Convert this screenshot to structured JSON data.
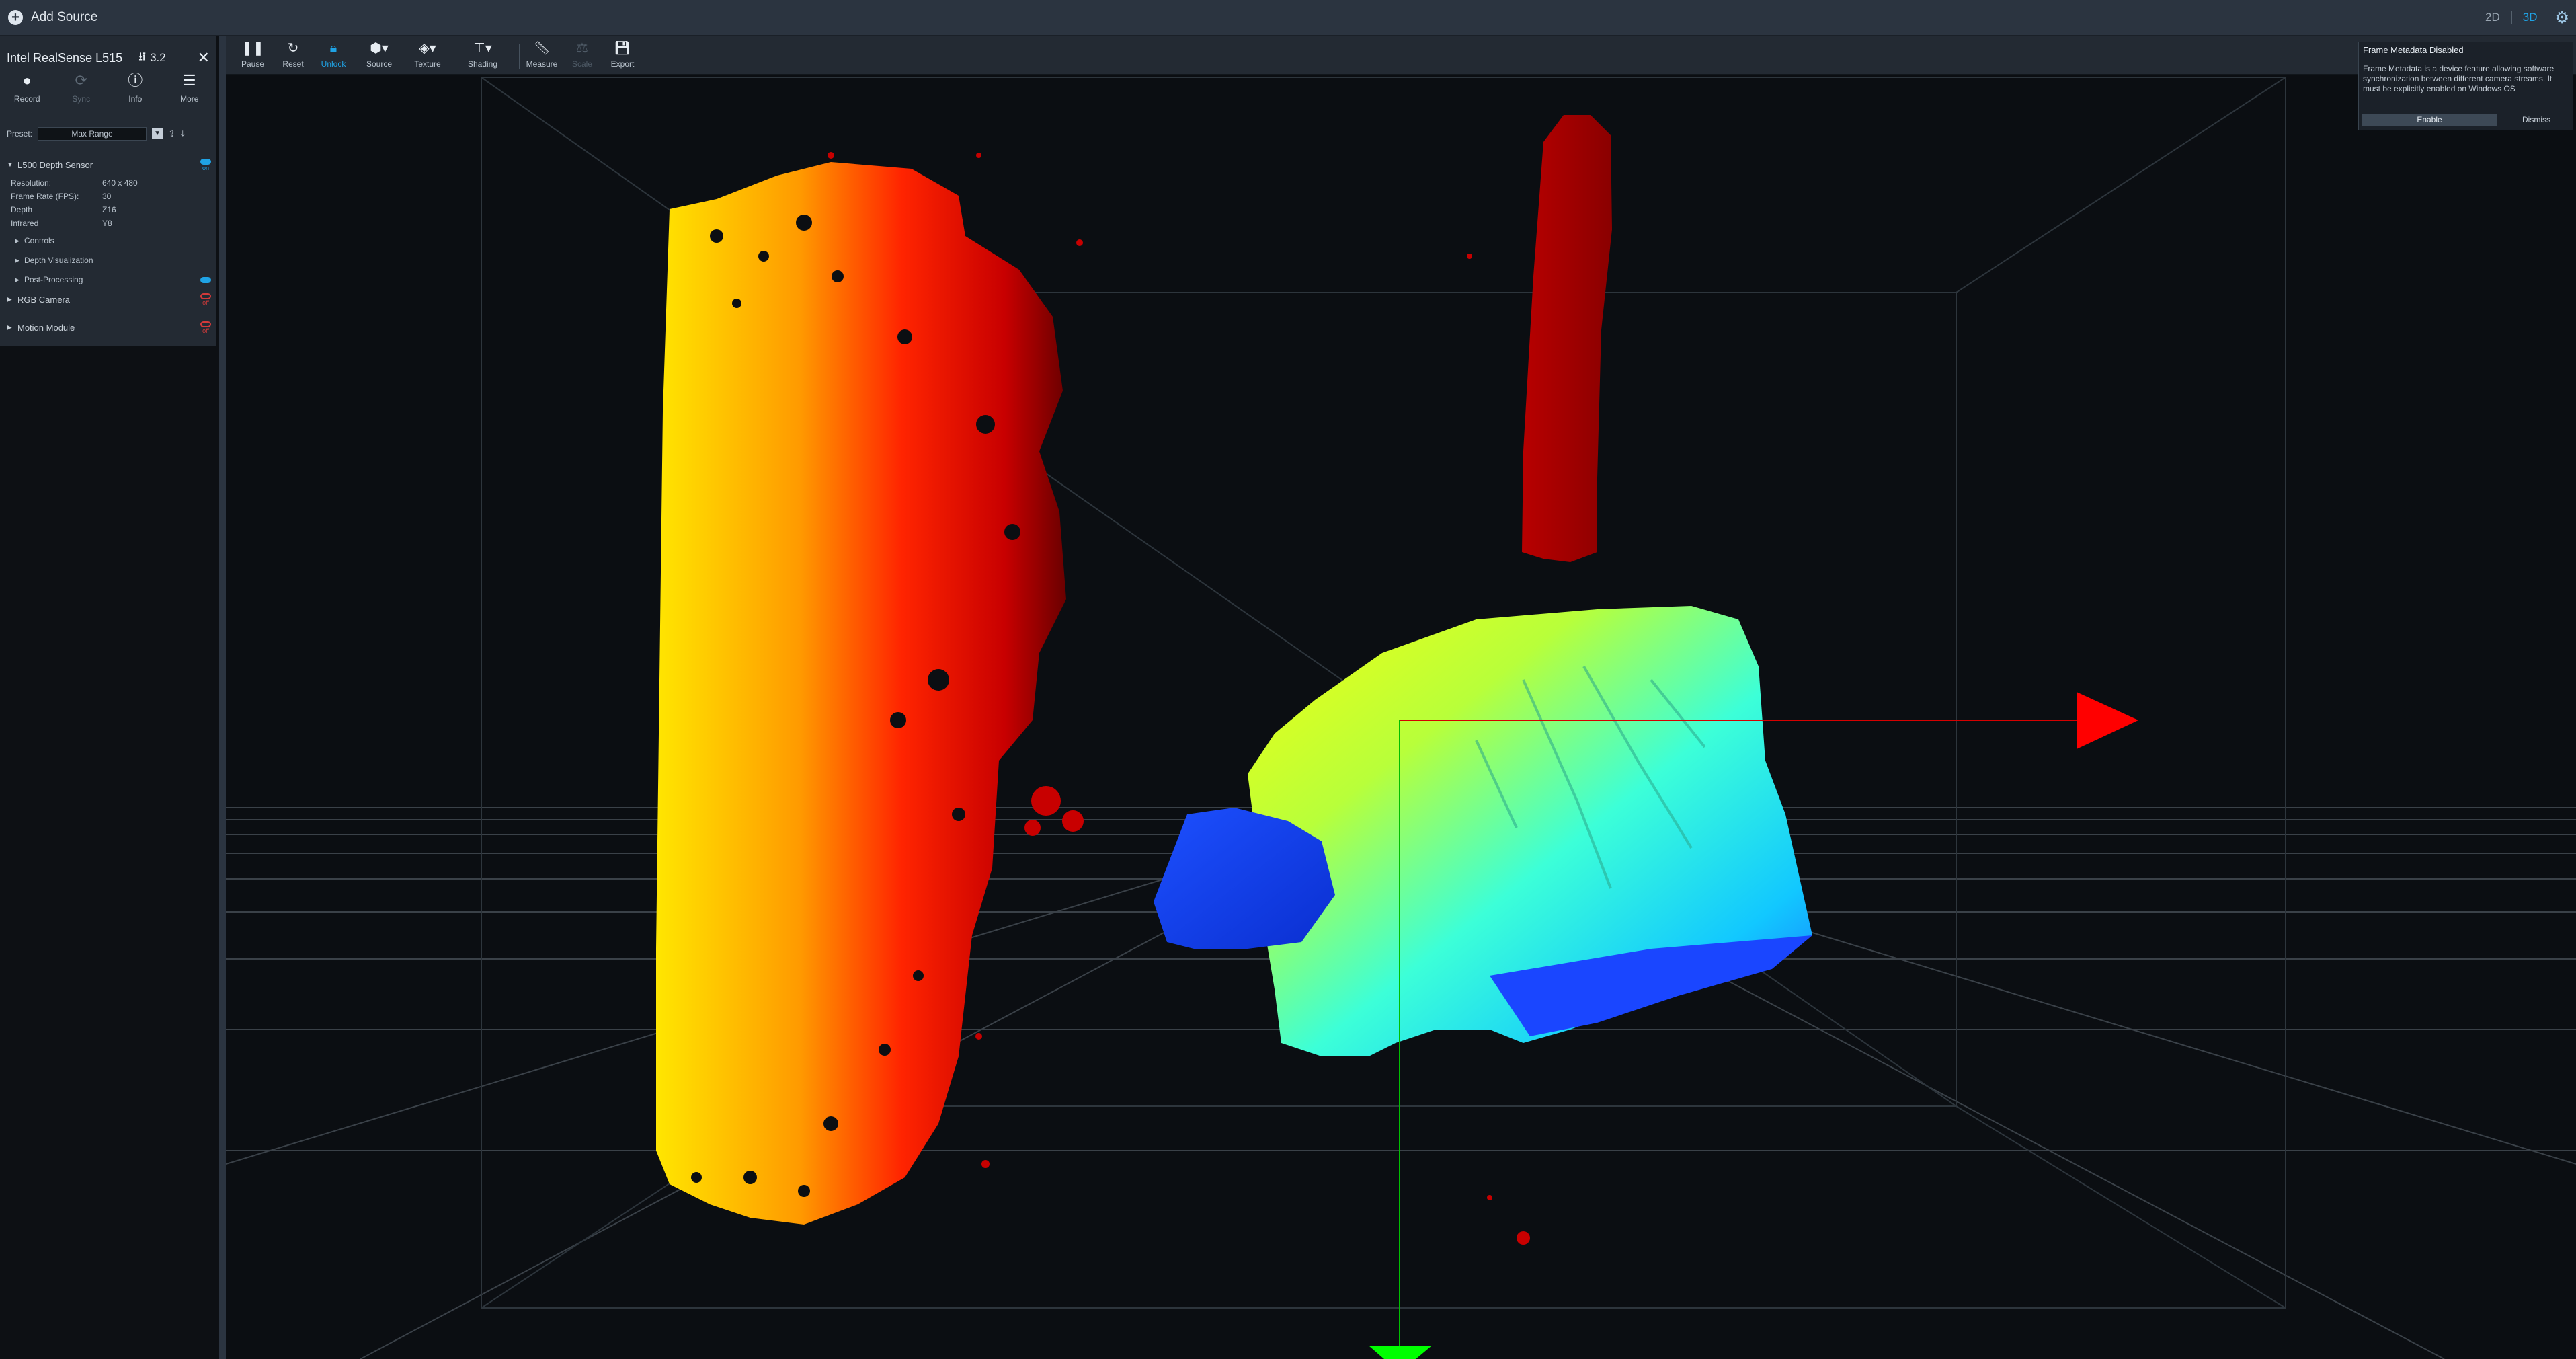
{
  "topbar": {
    "add_source": "Add Source",
    "view_2d": "2D",
    "view_3d": "3D",
    "settings_icon": "gear-icon"
  },
  "device": {
    "name": "Intel RealSense L515",
    "usb": "3.2",
    "actions": [
      {
        "label": "Record",
        "icon": "record-icon"
      },
      {
        "label": "Sync",
        "icon": "sync-icon"
      },
      {
        "label": "Info",
        "icon": "info-icon"
      },
      {
        "label": "More",
        "icon": "menu-icon"
      }
    ],
    "preset_label": "Preset:",
    "preset_value": "Max Range",
    "depth_sensor": {
      "name": "L500 Depth Sensor",
      "status": "on",
      "props": [
        {
          "key": "Resolution:",
          "value": "640 x 480"
        },
        {
          "key": "Frame Rate (FPS):",
          "value": "30"
        },
        {
          "key": "Depth",
          "value": "Z16"
        },
        {
          "key": "Infrared",
          "value": "Y8"
        }
      ],
      "subsections": [
        "Controls",
        "Depth Visualization",
        "Post-Processing"
      ]
    },
    "rgb_camera": {
      "name": "RGB Camera",
      "status": "off"
    },
    "motion_module": {
      "name": "Motion Module",
      "status": "off"
    }
  },
  "toolbar": {
    "items": [
      {
        "label": "Pause",
        "icon": "pause-icon"
      },
      {
        "label": "Reset",
        "icon": "reset-icon"
      },
      {
        "label": "Unlock",
        "icon": "lock-icon"
      },
      {
        "label": "Source",
        "icon": "cube-icon"
      },
      {
        "label": "Texture",
        "icon": "paint-bucket-icon"
      },
      {
        "label": "Shading",
        "icon": "paint-roller-icon"
      },
      {
        "label": "Measure",
        "icon": "ruler-icon"
      },
      {
        "label": "Scale",
        "icon": "scale-icon"
      },
      {
        "label": "Export",
        "icon": "save-icon"
      }
    ]
  },
  "notification": {
    "title": "Frame Metadata Disabled",
    "body": "Frame Metadata is a device feature allowing software synchronization between different camera streams. It must be explicitly enabled on Windows OS",
    "enable": "Enable",
    "dismiss": "Dismiss"
  },
  "colors": {
    "accent": "#1fa3e5",
    "off": "#d23a3a",
    "background": "#0b0e12",
    "panel": "#232a33"
  }
}
